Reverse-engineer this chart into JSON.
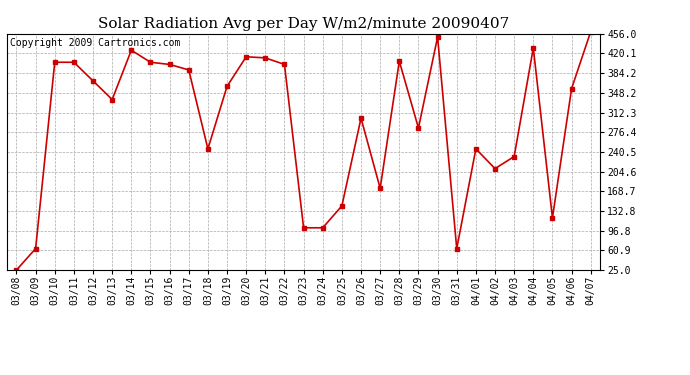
{
  "title": "Solar Radiation Avg per Day W/m2/minute 20090407",
  "copyright": "Copyright 2009 Cartronics.com",
  "line_color": "#cc0000",
  "marker_color": "#cc0000",
  "bg_color": "#ffffff",
  "grid_color": "#aaaaaa",
  "categories": [
    "03/08",
    "03/09",
    "03/10",
    "03/11",
    "03/12",
    "03/13",
    "03/14",
    "03/15",
    "03/16",
    "03/17",
    "03/18",
    "03/19",
    "03/20",
    "03/21",
    "03/22",
    "03/23",
    "03/24",
    "03/25",
    "03/26",
    "03/27",
    "03/28",
    "03/29",
    "03/30",
    "03/31",
    "04/01",
    "04/02",
    "04/03",
    "04/04",
    "04/05",
    "04/06",
    "04/07"
  ],
  "values": [
    25.0,
    64.0,
    404.0,
    404.0,
    370.0,
    336.0,
    426.0,
    404.0,
    400.0,
    390.0,
    246.0,
    360.0,
    414.0,
    412.0,
    400.0,
    102.0,
    102.0,
    142.0,
    302.0,
    174.0,
    406.0,
    284.0,
    450.0,
    64.0,
    246.0,
    210.0,
    232.0,
    430.0,
    120.0,
    356.0,
    460.0
  ],
  "yticks": [
    25.0,
    60.9,
    96.8,
    132.8,
    168.7,
    204.6,
    240.5,
    276.4,
    312.3,
    348.2,
    384.2,
    420.1,
    456.0
  ],
  "ymin": 25.0,
  "ymax": 456.0,
  "title_fontsize": 11,
  "tick_fontsize": 7,
  "copyright_fontsize": 7
}
